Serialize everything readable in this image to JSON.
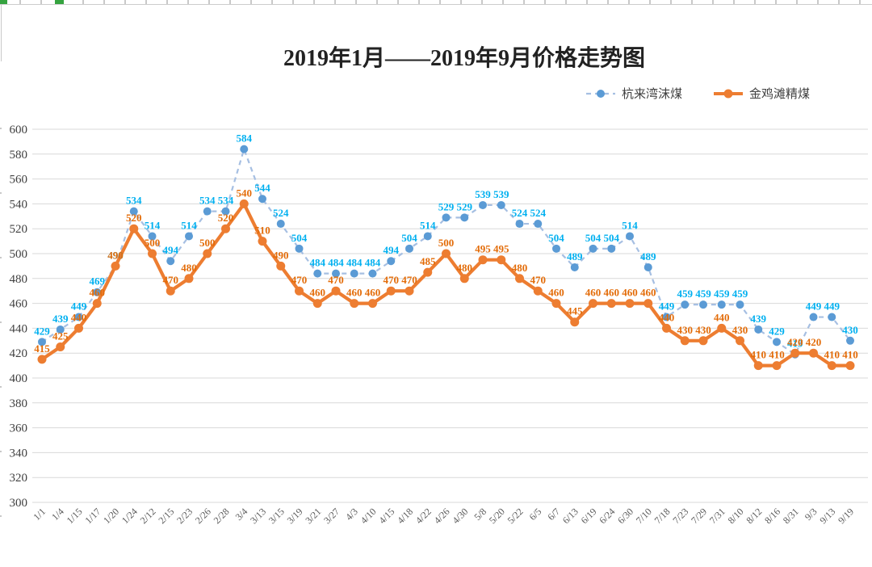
{
  "page": {
    "title": "2019年1月——2019年9月价格走势图"
  },
  "colors": {
    "grid": "#d9d9d9",
    "axis_text": "#595959",
    "title_text": "#222222",
    "sheet_edge": "#c9c9c9",
    "selection_green": "#35a33f"
  },
  "chart_data": {
    "type": "line",
    "title": "2019年1月——2019年9月价格走势图",
    "xlabel": "",
    "ylabel": "",
    "ylim": [
      300,
      600
    ],
    "ytick_step": 20,
    "grid": true,
    "legend_position": "top-right",
    "categories": [
      "1/1",
      "1/4",
      "1/15",
      "1/17",
      "1/20",
      "1/24",
      "2/12",
      "2/15",
      "2/23",
      "2/26",
      "2/28",
      "3/4",
      "3/13",
      "3/15",
      "3/19",
      "3/21",
      "3/27",
      "4/3",
      "4/10",
      "4/15",
      "4/18",
      "4/22",
      "4/26",
      "4/30",
      "5/8",
      "5/20",
      "5/22",
      "6/5",
      "6/7",
      "6/13",
      "6/19",
      "6/24",
      "6/30",
      "7/10",
      "7/18",
      "7/23",
      "7/29",
      "7/31",
      "8/10",
      "8/12",
      "8/16",
      "8/31",
      "9/3",
      "9/13",
      "9/19"
    ],
    "series": [
      {
        "name": "杭来湾沫煤",
        "style": "dashed",
        "line_color": "#a6bfe2",
        "point_color": "#5b9bd5",
        "label_color": "#00b0f0",
        "values": [
          429,
          439,
          449,
          469,
          490,
          534,
          514,
          494,
          514,
          534,
          534,
          584,
          544,
          524,
          504,
          484,
          484,
          484,
          484,
          494,
          504,
          514,
          529,
          529,
          539,
          539,
          524,
          524,
          504,
          489,
          504,
          504,
          514,
          489,
          449,
          459,
          459,
          459,
          459,
          439,
          429,
          419,
          449,
          449,
          430
        ]
      },
      {
        "name": "金鸡滩精煤",
        "style": "solid",
        "line_color": "#ed7d31",
        "point_color": "#ed7d31",
        "label_color": "#e36c09",
        "values": [
          415,
          425,
          440,
          460,
          490,
          520,
          500,
          470,
          480,
          500,
          520,
          540,
          510,
          490,
          470,
          460,
          470,
          460,
          460,
          470,
          470,
          485,
          500,
          480,
          495,
          495,
          480,
          470,
          460,
          445,
          460,
          460,
          460,
          460,
          440,
          430,
          430,
          440,
          430,
          410,
          410,
          420,
          420,
          410,
          410
        ]
      }
    ]
  }
}
